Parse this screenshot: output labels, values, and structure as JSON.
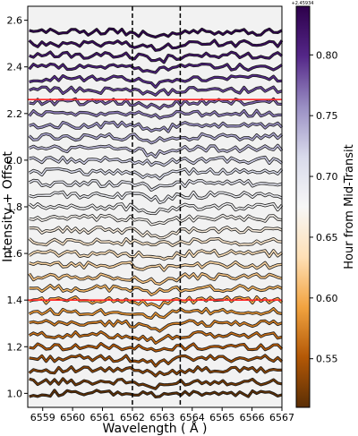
{
  "chart_data": {
    "type": "line",
    "xlabel": "Wavelength ( Å )",
    "ylabel": "Intensity + Offset",
    "xlim": [
      6558.5,
      6567.0
    ],
    "ylim": [
      0.94,
      2.66
    ],
    "x_ticks": [
      6559,
      6560,
      6561,
      6562,
      6563,
      6564,
      6565,
      6566,
      6567
    ],
    "y_ticks": [
      1.0,
      1.2,
      1.4,
      1.6,
      1.8,
      2.0,
      2.2,
      2.4,
      2.6
    ],
    "grid": false,
    "vlines": [
      6562.0,
      6563.6
    ],
    "reference_lines": [
      1.4,
      2.26
    ],
    "series_baselines": [
      1.0,
      1.05,
      1.1,
      1.15,
      1.2,
      1.25,
      1.3,
      1.35,
      1.4,
      1.45,
      1.5,
      1.55,
      1.6,
      1.65,
      1.7,
      1.75,
      1.8,
      1.85,
      1.9,
      1.95,
      2.0,
      2.05,
      2.1,
      2.15,
      2.2,
      2.25,
      2.3,
      2.35,
      2.4,
      2.45,
      2.5,
      2.55
    ],
    "colorbar": {
      "title": "Hour from Mid-Transit",
      "offset_text": "+2.45934",
      "range": [
        0.51,
        0.84
      ],
      "ticks": [
        0.55,
        0.6,
        0.65,
        0.7,
        0.75,
        0.8
      ],
      "colors": [
        "#5a2e05",
        "#b35806",
        "#f1a340",
        "#fee0b6",
        "#f7f7f7",
        "#d8daeb",
        "#998ec3",
        "#542788",
        "#2d004b"
      ]
    }
  },
  "colors": {
    "panel_bg": "#f2f2f2",
    "reference_line": "#ff2a2a",
    "guide_line": "#000000"
  }
}
